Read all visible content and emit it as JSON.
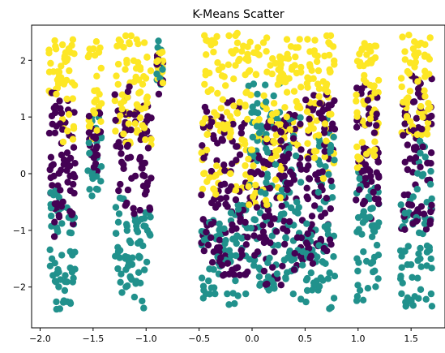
{
  "chart_data": {
    "type": "scatter",
    "title": "K-Means Scatter",
    "xlabel": "",
    "ylabel": "",
    "xlim": [
      -2.08,
      1.82
    ],
    "ylim": [
      -2.72,
      2.62
    ],
    "xticks": [
      {
        "value": -2.0,
        "label": "−2.0"
      },
      {
        "value": -1.5,
        "label": "−1.5"
      },
      {
        "value": -1.0,
        "label": "−1.0"
      },
      {
        "value": -0.5,
        "label": "−0.5"
      },
      {
        "value": 0.0,
        "label": "0.0"
      },
      {
        "value": 0.5,
        "label": "0.5"
      },
      {
        "value": 1.0,
        "label": "1.0"
      },
      {
        "value": 1.5,
        "label": "1.5"
      }
    ],
    "yticks": [
      {
        "value": 2,
        "label": "2"
      },
      {
        "value": 1,
        "label": "1"
      },
      {
        "value": 0,
        "label": "0"
      },
      {
        "value": -1,
        "label": "−1"
      },
      {
        "value": -2,
        "label": "−2"
      }
    ],
    "grid": false,
    "legend": "none",
    "colors": {
      "cluster_0": "#440154",
      "cluster_1": "#21918c",
      "cluster_2": "#fde725"
    },
    "bands": [
      {
        "x0": -1.92,
        "x1": -1.8,
        "yellow": [
          1.4,
          2.4
        ],
        "purple": [
          -1.2,
          1.5
        ],
        "teal": [
          -2.4,
          -0.3
        ]
      },
      {
        "x0": -1.8,
        "x1": -1.67,
        "yellow": [
          0.5,
          2.4
        ],
        "purple": [
          -1.0,
          1.4
        ],
        "teal": [
          -2.3,
          -0.5
        ]
      },
      {
        "x0": -1.55,
        "x1": -1.42,
        "yellow": [
          0.6,
          2.4
        ],
        "purple": [
          -0.1,
          1.2
        ],
        "teal": [
          -0.4,
          1.0
        ]
      },
      {
        "x0": -1.3,
        "x1": -1.15,
        "yellow": [
          0.5,
          2.45
        ],
        "purple": [
          -0.6,
          1.6
        ],
        "teal": [
          -2.1,
          -0.4
        ]
      },
      {
        "x0": -1.15,
        "x1": -0.95,
        "yellow": [
          0.5,
          2.45
        ],
        "purple": [
          -0.8,
          1.4
        ],
        "teal": [
          -2.4,
          -0.6
        ]
      },
      {
        "x0": -0.9,
        "x1": -0.84,
        "yellow": [
          1.6,
          2.2
        ],
        "purple": [
          1.4,
          2.1
        ],
        "teal": [
          1.5,
          2.45
        ]
      },
      {
        "x0": -0.48,
        "x1": -0.3,
        "yellow": [
          -0.4,
          2.45
        ],
        "purple": [
          -1.6,
          1.2
        ],
        "teal": [
          -2.2,
          -0.8
        ]
      },
      {
        "x0": -0.3,
        "x1": -0.05,
        "yellow": [
          -0.3,
          2.5
        ],
        "purple": [
          -1.8,
          1.4
        ],
        "teal": [
          -2.35,
          -0.5
        ]
      },
      {
        "x0": -0.05,
        "x1": 0.3,
        "yellow": [
          -0.6,
          2.5
        ],
        "purple": [
          -2.0,
          1.0
        ],
        "teal": [
          -2.1,
          1.6
        ]
      },
      {
        "x0": 0.3,
        "x1": 0.48,
        "yellow": [
          0.5,
          2.45
        ],
        "purple": [
          -1.8,
          1.2
        ],
        "teal": [
          -2.25,
          1.0
        ]
      },
      {
        "x0": 0.5,
        "x1": 0.62,
        "yellow": [
          0.2,
          2.45
        ],
        "purple": [
          -1.6,
          1.5
        ],
        "teal": [
          -2.3,
          -0.8
        ]
      },
      {
        "x0": 0.62,
        "x1": 0.78,
        "yellow": [
          -0.2,
          2.45
        ],
        "purple": [
          -1.4,
          1.4
        ],
        "teal": [
          -2.45,
          1.0
        ]
      },
      {
        "x0": 0.98,
        "x1": 1.1,
        "yellow": [
          0.0,
          2.3
        ],
        "purple": [
          -0.6,
          1.6
        ],
        "teal": [
          -2.25,
          0.1
        ]
      },
      {
        "x0": 1.1,
        "x1": 1.2,
        "yellow": [
          0.2,
          2.3
        ],
        "purple": [
          -0.8,
          1.5
        ],
        "teal": [
          -2.1,
          -0.2
        ]
      },
      {
        "x0": 1.4,
        "x1": 1.55,
        "yellow": [
          0.6,
          2.45
        ],
        "purple": [
          -1.0,
          1.8
        ],
        "teal": [
          -2.4,
          -0.4
        ]
      },
      {
        "x0": 1.55,
        "x1": 1.7,
        "yellow": [
          0.6,
          2.45
        ],
        "purple": [
          -1.0,
          1.7
        ],
        "teal": [
          -2.35,
          0.6
        ]
      }
    ]
  }
}
